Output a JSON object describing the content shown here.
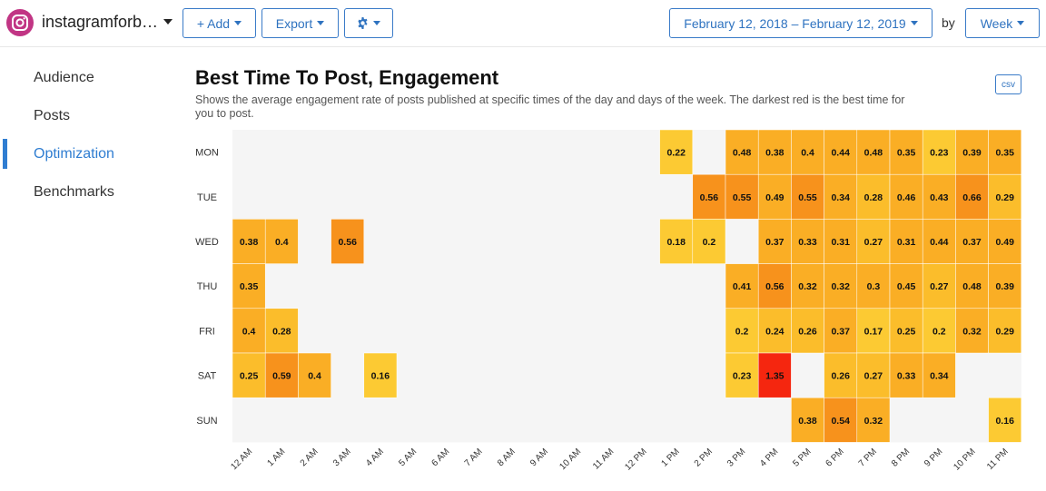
{
  "header": {
    "account_name": "instagramforb…",
    "add_label": "+ Add",
    "export_label": "Export",
    "date_range": "February 12, 2018 – February 12, 2019",
    "by_label": "by",
    "period_label": "Week"
  },
  "sidebar": {
    "items": [
      {
        "label": "Audience",
        "active": false
      },
      {
        "label": "Posts",
        "active": false
      },
      {
        "label": "Optimization",
        "active": true
      },
      {
        "label": "Benchmarks",
        "active": false
      }
    ]
  },
  "main": {
    "title": "Best Time To Post, Engagement",
    "description": "Shows the average engagement rate of posts published at specific times of the day and days of the week. The darkest red is the best time for you to post.",
    "csv_label": "csv"
  },
  "colors": {
    "accent": "#2f7dd1",
    "empty_cell": "#f5f5f5"
  },
  "chart_data": {
    "type": "heatmap",
    "title": "Best Time To Post, Engagement",
    "rows": [
      "MON",
      "TUE",
      "WED",
      "THU",
      "FRI",
      "SAT",
      "SUN"
    ],
    "columns": [
      "12 AM",
      "1 AM",
      "2 AM",
      "3 AM",
      "4 AM",
      "5 AM",
      "6 AM",
      "7 AM",
      "8 AM",
      "9 AM",
      "10 AM",
      "11 AM",
      "12 PM",
      "1 PM",
      "2 PM",
      "3 PM",
      "4 PM",
      "5 PM",
      "6 PM",
      "7 PM",
      "8 PM",
      "9 PM",
      "10 PM",
      "11 PM"
    ],
    "cells": [
      [
        "MON",
        "1 PM",
        0.22
      ],
      [
        "MON",
        "3 PM",
        0.48
      ],
      [
        "MON",
        "4 PM",
        0.38
      ],
      [
        "MON",
        "5 PM",
        0.4
      ],
      [
        "MON",
        "6 PM",
        0.44
      ],
      [
        "MON",
        "7 PM",
        0.48
      ],
      [
        "MON",
        "8 PM",
        0.35
      ],
      [
        "MON",
        "9 PM",
        0.23
      ],
      [
        "MON",
        "10 PM",
        0.39
      ],
      [
        "MON",
        "11 PM",
        0.35
      ],
      [
        "TUE",
        "2 PM",
        0.56
      ],
      [
        "TUE",
        "3 PM",
        0.55
      ],
      [
        "TUE",
        "4 PM",
        0.49
      ],
      [
        "TUE",
        "5 PM",
        0.55
      ],
      [
        "TUE",
        "6 PM",
        0.34
      ],
      [
        "TUE",
        "7 PM",
        0.28
      ],
      [
        "TUE",
        "8 PM",
        0.46
      ],
      [
        "TUE",
        "9 PM",
        0.43
      ],
      [
        "TUE",
        "10 PM",
        0.66
      ],
      [
        "TUE",
        "11 PM",
        0.29
      ],
      [
        "WED",
        "12 AM",
        0.38
      ],
      [
        "WED",
        "1 AM",
        0.4
      ],
      [
        "WED",
        "3 AM",
        0.56
      ],
      [
        "WED",
        "1 PM",
        0.18
      ],
      [
        "WED",
        "2 PM",
        0.2
      ],
      [
        "WED",
        "4 PM",
        0.37
      ],
      [
        "WED",
        "5 PM",
        0.33
      ],
      [
        "WED",
        "6 PM",
        0.31
      ],
      [
        "WED",
        "7 PM",
        0.27
      ],
      [
        "WED",
        "8 PM",
        0.31
      ],
      [
        "WED",
        "9 PM",
        0.44
      ],
      [
        "WED",
        "10 PM",
        0.37
      ],
      [
        "WED",
        "11 PM",
        0.49
      ],
      [
        "THU",
        "12 AM",
        0.35
      ],
      [
        "THU",
        "3 PM",
        0.41
      ],
      [
        "THU",
        "4 PM",
        0.56
      ],
      [
        "THU",
        "5 PM",
        0.32
      ],
      [
        "THU",
        "6 PM",
        0.32
      ],
      [
        "THU",
        "7 PM",
        0.3
      ],
      [
        "THU",
        "8 PM",
        0.45
      ],
      [
        "THU",
        "9 PM",
        0.27
      ],
      [
        "THU",
        "10 PM",
        0.48
      ],
      [
        "THU",
        "11 PM",
        0.39
      ],
      [
        "FRI",
        "12 AM",
        0.4
      ],
      [
        "FRI",
        "1 AM",
        0.28
      ],
      [
        "FRI",
        "3 PM",
        0.2
      ],
      [
        "FRI",
        "4 PM",
        0.24
      ],
      [
        "FRI",
        "5 PM",
        0.26
      ],
      [
        "FRI",
        "6 PM",
        0.37
      ],
      [
        "FRI",
        "7 PM",
        0.17
      ],
      [
        "FRI",
        "8 PM",
        0.25
      ],
      [
        "FRI",
        "9 PM",
        0.2
      ],
      [
        "FRI",
        "10 PM",
        0.32
      ],
      [
        "FRI",
        "11 PM",
        0.29
      ],
      [
        "SAT",
        "12 AM",
        0.25
      ],
      [
        "SAT",
        "1 AM",
        0.59
      ],
      [
        "SAT",
        "2 AM",
        0.4
      ],
      [
        "SAT",
        "4 AM",
        0.16
      ],
      [
        "SAT",
        "3 PM",
        0.23
      ],
      [
        "SAT",
        "4 PM",
        1.35
      ],
      [
        "SAT",
        "6 PM",
        0.26
      ],
      [
        "SAT",
        "7 PM",
        0.27
      ],
      [
        "SAT",
        "8 PM",
        0.33
      ],
      [
        "SAT",
        "9 PM",
        0.34
      ],
      [
        "SUN",
        "5 PM",
        0.38
      ],
      [
        "SUN",
        "6 PM",
        0.54
      ],
      [
        "SUN",
        "7 PM",
        0.32
      ],
      [
        "SUN",
        "11 PM",
        0.16
      ]
    ]
  }
}
